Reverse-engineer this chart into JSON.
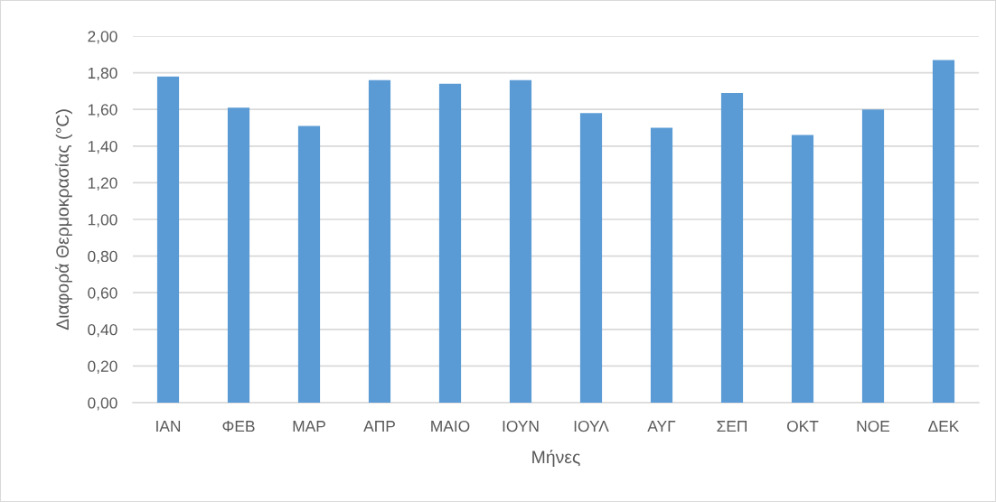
{
  "chart_data": {
    "type": "bar",
    "xlabel": "Μήνες",
    "ylabel": "Διαφορά Θερμοκρασίας (°C)",
    "categories": [
      "ΙΑΝ",
      "ΦΕΒ",
      "ΜΑΡ",
      "ΑΠΡ",
      "ΜΑΙΟ",
      "ΙΟΥΝ",
      "ΙΟΥΛ",
      "ΑΥΓ",
      "ΣΕΠ",
      "ΟΚΤ",
      "ΝΟΕ",
      "ΔΕΚ"
    ],
    "values": [
      1.78,
      1.61,
      1.51,
      1.76,
      1.74,
      1.76,
      1.58,
      1.5,
      1.69,
      1.46,
      1.6,
      1.87
    ],
    "color": "#5b9bd5",
    "ylim": [
      0,
      2
    ],
    "yticks": [
      {
        "value": 0,
        "label": "0,00"
      },
      {
        "value": 0.2,
        "label": "0,20"
      },
      {
        "value": 0.4,
        "label": "0,40"
      },
      {
        "value": 0.6,
        "label": "0,60"
      },
      {
        "value": 0.8,
        "label": "0,80"
      },
      {
        "value": 1.0,
        "label": "1,00"
      },
      {
        "value": 1.2,
        "label": "1,20"
      },
      {
        "value": 1.4,
        "label": "1,40"
      },
      {
        "value": 1.6,
        "label": "1,60"
      },
      {
        "value": 1.8,
        "label": "1,80"
      },
      {
        "value": 2.0,
        "label": "2,00"
      }
    ],
    "grid": "y"
  }
}
